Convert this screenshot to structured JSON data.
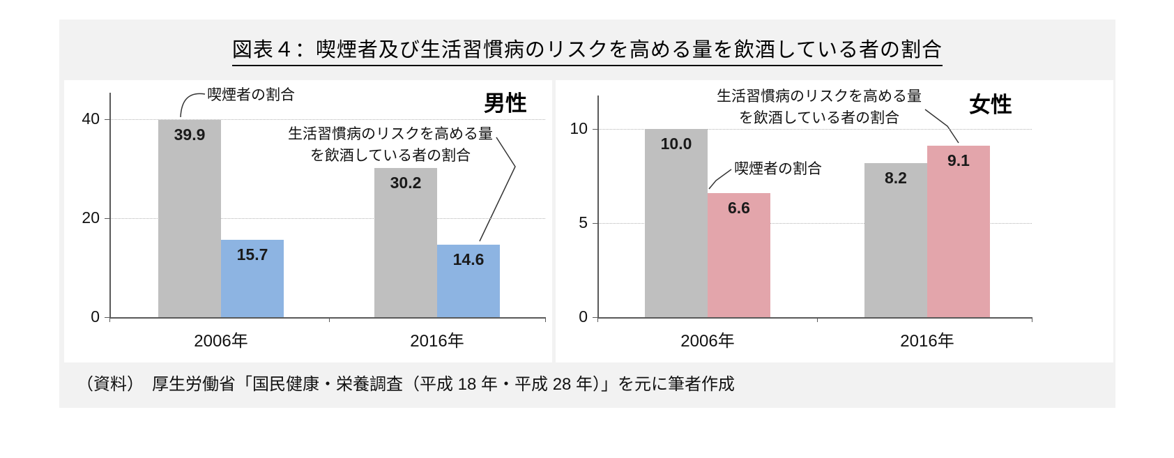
{
  "page": {
    "title": "図表４：喫煙者及び生活習慣病のリスクを高める量を飲酒している者の割合",
    "source_note": "（資料）　厚生労働省「国民健康・栄養調査（平成 18 年・平成 28 年）」を元に筆者作成"
  },
  "colors": {
    "outer_background": "#ffffff",
    "card_background": "#f2f2f2",
    "panel_background": "#ffffff",
    "smoker_bar": "#bfbfbf",
    "male_drinker_bar": "#8db4e2",
    "female_drinker_bar": "#e3a5ab",
    "axis": "#595959",
    "gridline": "#b3b3b3"
  },
  "chart_data": [
    {
      "type": "bar",
      "title": "男性",
      "categories": [
        "2006年",
        "2016年"
      ],
      "series": [
        {
          "name": "喫煙者の割合",
          "values": [
            39.9,
            30.2
          ],
          "color": "#bfbfbf"
        },
        {
          "name": "生活習慣病のリスクを高める量を飲酒している者の割合",
          "values": [
            15.7,
            14.6
          ],
          "color": "#8db4e2"
        }
      ],
      "xlabel": "",
      "ylabel": "",
      "ylim": [
        0,
        45
      ],
      "yticks": [
        0,
        20,
        40
      ],
      "grid": "dotted horizontal",
      "legend": "none (annotated with callout lines)",
      "annotations": {
        "smoker_label": "喫煙者の割合",
        "drinker_label_line1": "生活習慣病のリスクを高める量",
        "drinker_label_line2": "を飲酒している者の割合"
      }
    },
    {
      "type": "bar",
      "title": "女性",
      "categories": [
        "2006年",
        "2016年"
      ],
      "series": [
        {
          "name": "喫煙者の割合",
          "values": [
            10.0,
            8.2
          ],
          "color": "#bfbfbf"
        },
        {
          "name": "生活習慣病のリスクを高める量を飲酒している者の割合",
          "values": [
            6.6,
            9.1
          ],
          "color": "#e3a5ab"
        }
      ],
      "xlabel": "",
      "ylabel": "",
      "ylim": [
        0,
        11.8
      ],
      "yticks": [
        0,
        5,
        10
      ],
      "grid": "dotted horizontal",
      "legend": "none (annotated with callout lines)",
      "annotations": {
        "smoker_label": "喫煙者の割合",
        "drinker_label_line1": "生活習慣病のリスクを高める量",
        "drinker_label_line2": "を飲酒している者の割合"
      }
    }
  ]
}
